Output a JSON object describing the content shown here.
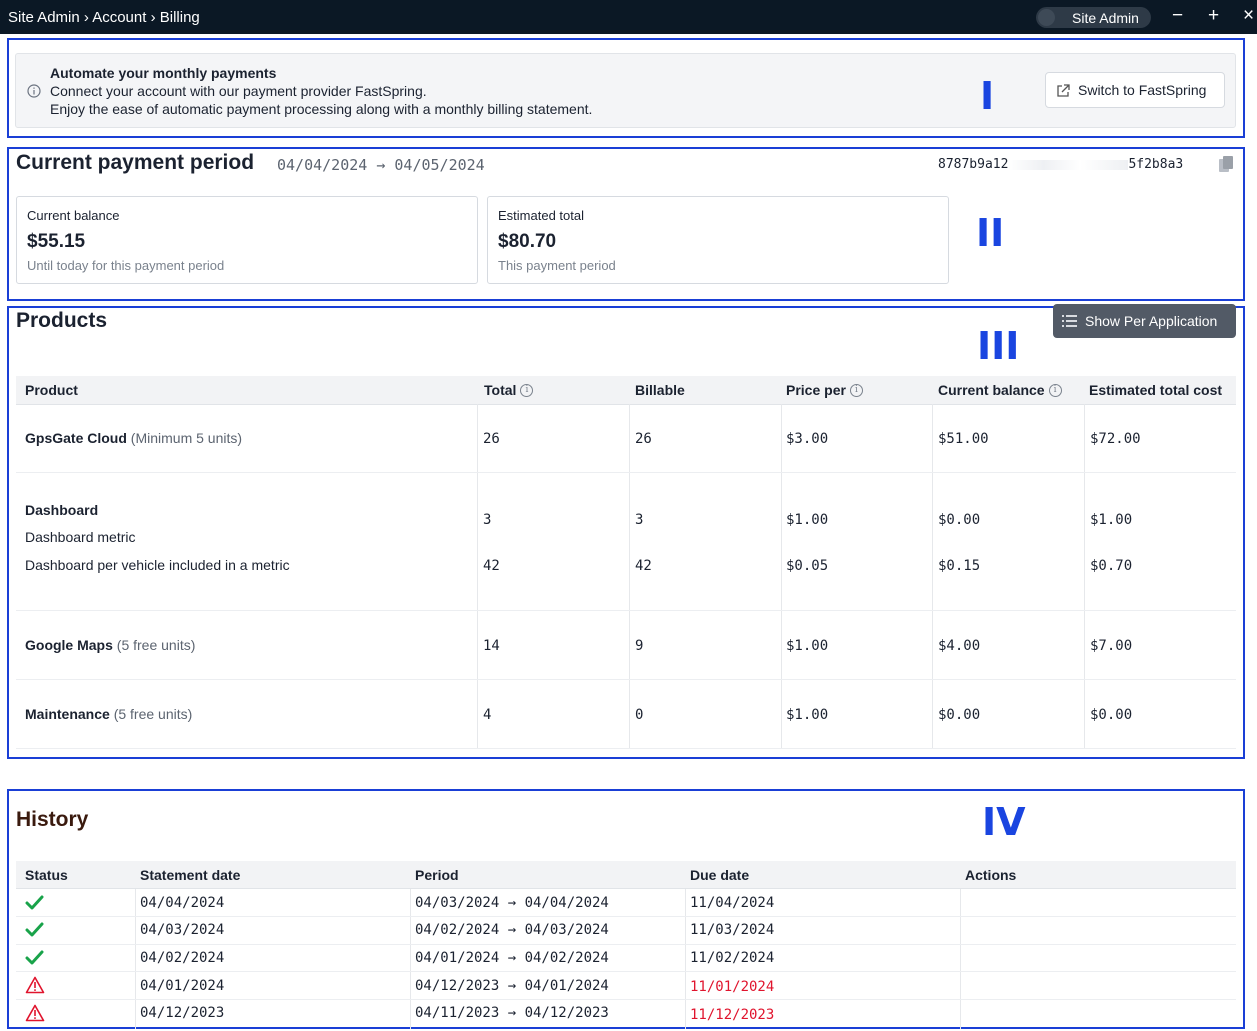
{
  "window": {
    "breadcrumb": "Site Admin › Account › Billing",
    "user_label": "Site Admin",
    "minimize_label": "−",
    "new_label": "+",
    "close_label": "×"
  },
  "annotations": [
    "I",
    "II",
    "III",
    "IV"
  ],
  "banner": {
    "title": "Automate your monthly payments",
    "line1": "Connect your account with our payment provider FastSpring.",
    "line2": "Enjoy the ease of automatic payment processing along with a monthly billing statement.",
    "button_label": "Switch to FastSpring"
  },
  "period": {
    "title": "Current payment period",
    "dates": "04/04/2024 → 04/05/2024",
    "id_start": "8787b9a12",
    "id_end": "5f2b8a3",
    "cards": [
      {
        "label": "Current balance",
        "value": "$55.15",
        "sub": "Until today for this payment period"
      },
      {
        "label": "Estimated total",
        "value": "$80.70",
        "sub": "This payment period"
      }
    ]
  },
  "products": {
    "title": "Products",
    "toggle_label": "Show Per Application",
    "columns": [
      "Product",
      "Total",
      "Billable",
      "Price per",
      "Current balance",
      "Estimated total cost"
    ],
    "rows": [
      {
        "name": "GpsGate Cloud",
        "note": "(Minimum 5 units)",
        "total": "26",
        "billable": "26",
        "price": "$3.00",
        "current": "$51.00",
        "estimated": "$72.00"
      },
      {
        "name": "Dashboard",
        "note": "",
        "subrows": [
          {
            "name": "Dashboard metric",
            "total": "3",
            "billable": "3",
            "price": "$1.00",
            "current": "$0.00",
            "estimated": "$1.00"
          },
          {
            "name": "Dashboard per vehicle included in a metric",
            "total": "42",
            "billable": "42",
            "price": "$0.05",
            "current": "$0.15",
            "estimated": "$0.70"
          }
        ]
      },
      {
        "name": "Google Maps",
        "note": "(5 free units)",
        "total": "14",
        "billable": "9",
        "price": "$1.00",
        "current": "$4.00",
        "estimated": "$7.00"
      },
      {
        "name": "Maintenance",
        "note": "(5 free units)",
        "total": "4",
        "billable": "0",
        "price": "$1.00",
        "current": "$0.00",
        "estimated": "$0.00"
      }
    ]
  },
  "history": {
    "title": "History",
    "columns": [
      "Status",
      "Statement date",
      "Period",
      "Due date",
      "Actions"
    ],
    "rows": [
      {
        "status": "paid",
        "statement": "04/04/2024",
        "period": "04/03/2024 → 04/04/2024",
        "due": "11/04/2024",
        "overdue": false
      },
      {
        "status": "paid",
        "statement": "04/03/2024",
        "period": "04/02/2024 → 04/03/2024",
        "due": "11/03/2024",
        "overdue": false
      },
      {
        "status": "paid",
        "statement": "04/02/2024",
        "period": "04/01/2024 → 04/02/2024",
        "due": "11/02/2024",
        "overdue": false
      },
      {
        "status": "warning",
        "statement": "04/01/2024",
        "period": "04/12/2023 → 04/01/2024",
        "due": "11/01/2024",
        "overdue": true
      },
      {
        "status": "warning",
        "statement": "04/12/2023",
        "period": "04/11/2023 → 04/12/2023",
        "due": "11/12/2023",
        "overdue": true
      }
    ]
  },
  "colors": {
    "accent": "#1a45e0",
    "success": "#19a34a",
    "danger": "#e0142d",
    "titlebar": "#0b1825"
  }
}
